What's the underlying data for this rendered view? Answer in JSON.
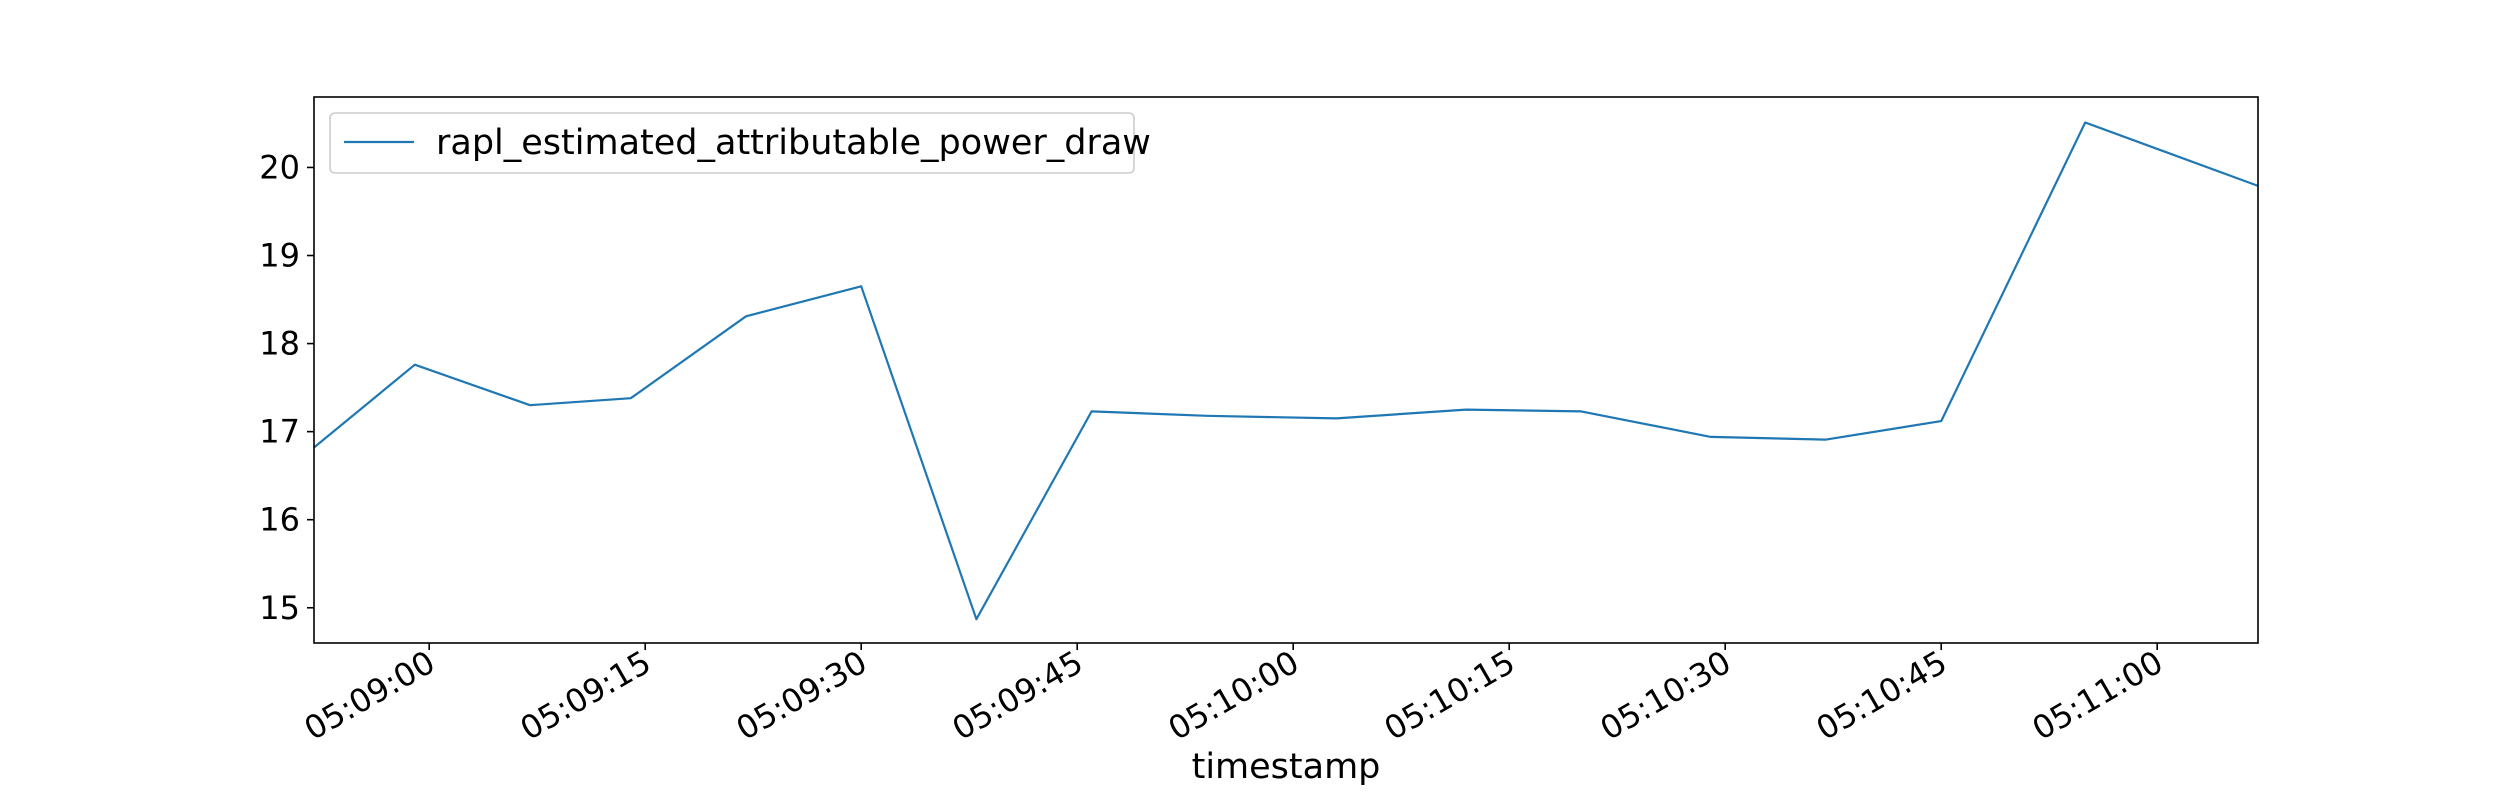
{
  "chart_data": {
    "type": "line",
    "xlabel": "timestamp",
    "ylabel": "",
    "grid": false,
    "legend_position": "upper-left",
    "xlim": [
      "05:08:52",
      "05:11:07"
    ],
    "ylim": [
      14.6,
      20.8
    ],
    "x_ticks": [
      "05:09:00",
      "05:09:15",
      "05:09:30",
      "05:09:45",
      "05:10:00",
      "05:10:15",
      "05:10:30",
      "05:10:45",
      "05:11:00"
    ],
    "y_ticks": [
      15,
      16,
      17,
      18,
      19,
      20
    ],
    "series": [
      {
        "name": "rapl_estimated_attributable_power_draw",
        "color": "#1f77b4",
        "x": [
          "05:08:52",
          "05:08:59",
          "05:09:07",
          "05:09:14",
          "05:09:22",
          "05:09:30",
          "05:09:38",
          "05:09:46",
          "05:09:54",
          "05:10:03",
          "05:10:12",
          "05:10:20",
          "05:10:29",
          "05:10:37",
          "05:10:45",
          "05:10:55",
          "05:11:07"
        ],
        "values": [
          16.82,
          17.76,
          17.3,
          17.38,
          18.31,
          18.65,
          14.87,
          17.23,
          17.18,
          17.15,
          17.25,
          17.23,
          16.94,
          16.91,
          17.12,
          20.51,
          19.79
        ]
      }
    ]
  }
}
